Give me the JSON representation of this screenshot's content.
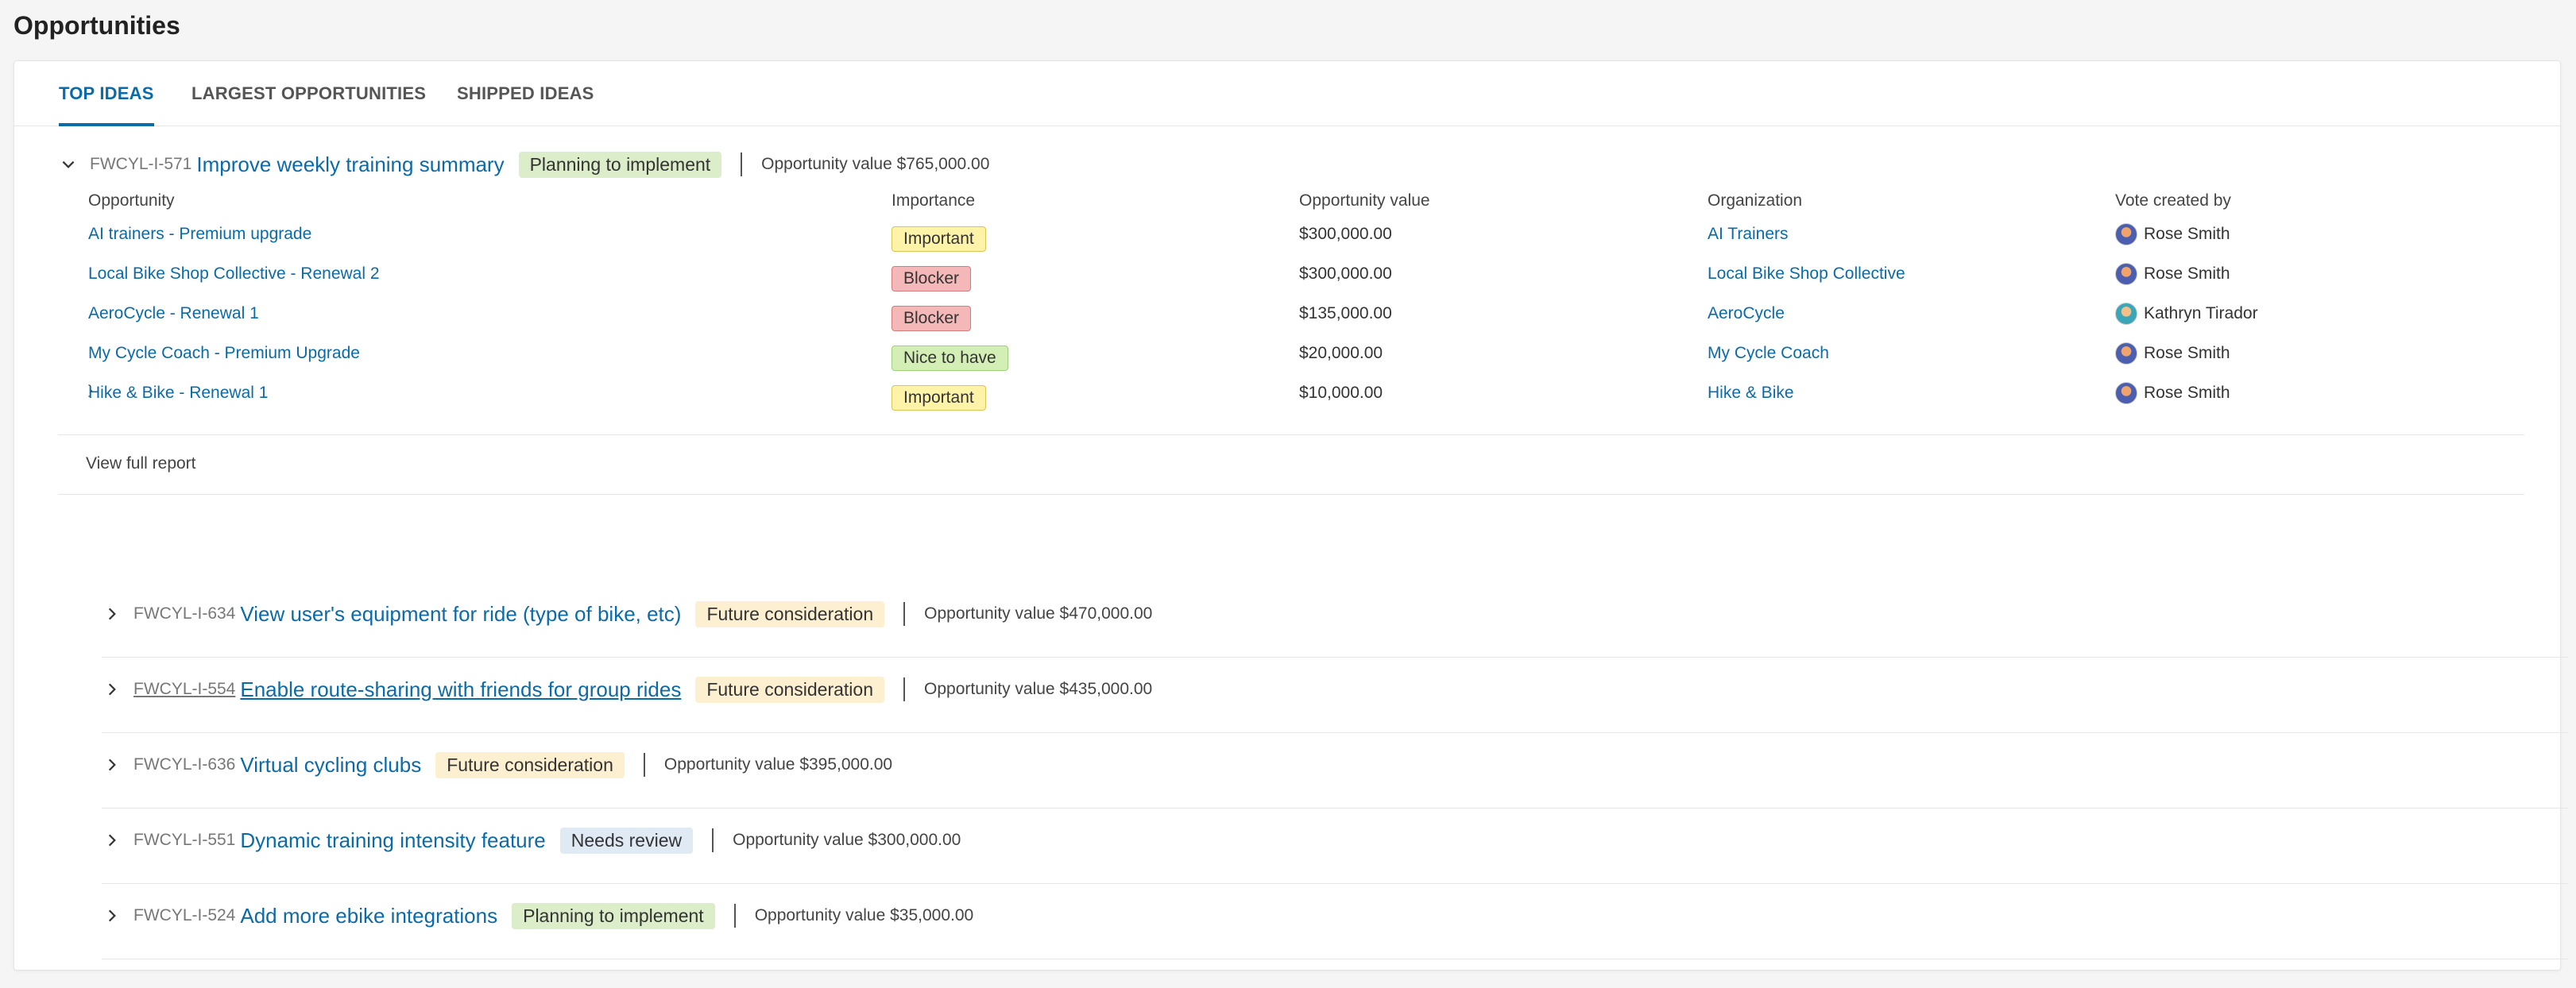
{
  "page": {
    "title": "Opportunities"
  },
  "tabs": [
    {
      "label": "TOP IDEAS",
      "active": true
    },
    {
      "label": "LARGEST OPPORTUNITIES",
      "active": false
    },
    {
      "label": "SHIPPED IDEAS",
      "active": false
    }
  ],
  "columns": {
    "opportunity": "Opportunity",
    "importance": "Importance",
    "value": "Opportunity value",
    "organization": "Organization",
    "voter": "Vote created by"
  },
  "ideas": [
    {
      "ref": "FWCYL-I-571",
      "name": "Improve weekly training summary",
      "status": "Planning to implement",
      "status_color": "#dcedc9",
      "value_text": "Opportunity value $765,000.00",
      "expanded": true,
      "rows": [
        {
          "opportunity": "AI trainers - Premium upgrade",
          "importance": "Important",
          "value": "$300,000.00",
          "organization": "AI Trainers",
          "voter": "Rose Smith"
        },
        {
          "opportunity": "Local Bike Shop Collective - Renewal 2",
          "importance": "Blocker",
          "value": "$300,000.00",
          "organization": "Local Bike Shop Collective",
          "voter": "Rose Smith"
        },
        {
          "opportunity": "AeroCycle - Renewal 1",
          "importance": "Blocker",
          "value": "$135,000.00",
          "organization": "AeroCycle",
          "voter": "Kathryn Tirador"
        },
        {
          "opportunity": "My Cycle Coach - Premium Upgrade",
          "importance": "Nice to have",
          "value": "$20,000.00",
          "organization": "My Cycle Coach",
          "voter": "Rose Smith"
        },
        {
          "opportunity": "Hike & Bike - Renewal 1",
          "importance": "Important",
          "value": "$10,000.00",
          "organization": "Hike & Bike",
          "voter": "Rose Smith"
        }
      ]
    },
    {
      "ref": "FWCYL-I-634",
      "name": "View user's equipment for ride (type of bike, etc)",
      "status": "Future consideration",
      "status_color": "#fdf0d0",
      "value_text": "Opportunity value $470,000.00",
      "expanded": false
    },
    {
      "ref": "FWCYL-I-554",
      "name": "Enable route-sharing with friends for group rides",
      "status": "Future consideration",
      "status_color": "#fdf0d0",
      "value_text": "Opportunity value $435,000.00",
      "expanded": false,
      "hovered": true
    },
    {
      "ref": "FWCYL-I-636",
      "name": "Virtual cycling clubs",
      "status": "Future consideration",
      "status_color": "#fdf0d0",
      "value_text": "Opportunity value $395,000.00",
      "expanded": false
    },
    {
      "ref": "FWCYL-I-551",
      "name": "Dynamic training intensity feature",
      "status": "Needs review",
      "status_color": "#dfeaf5",
      "value_text": "Opportunity value $300,000.00",
      "expanded": false
    },
    {
      "ref": "FWCYL-I-524",
      "name": "Add more ebike integrations",
      "status": "Planning to implement",
      "status_color": "#dcedc9",
      "value_text": "Opportunity value $35,000.00",
      "expanded": false
    }
  ],
  "footer": {
    "link": "View full report"
  },
  "icons": {
    "expanded": "chevron-down-icon",
    "collapsed": "chevron-right-icon",
    "avatar": "user-avatar"
  }
}
